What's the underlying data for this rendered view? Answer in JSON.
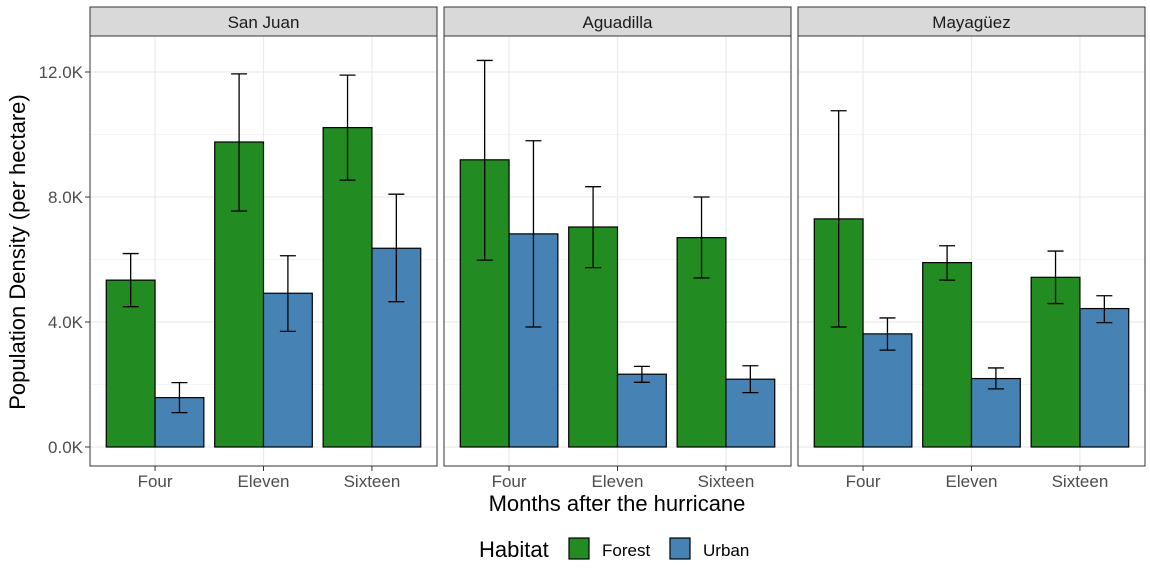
{
  "chart_data": {
    "type": "bar",
    "ylabel": "Population Density (per hectare)",
    "xlabel": "Months after the hurricane",
    "ylim": [
      0,
      13.2
    ],
    "yticks": [
      0,
      4,
      8,
      12
    ],
    "ytick_labels": [
      "0.0K",
      "4.0K",
      "8.0K",
      "12.0K"
    ],
    "grid": true,
    "categories": [
      "Four",
      "Eleven",
      "Sixteen"
    ],
    "legend": {
      "title": "Habitat",
      "position": "bottom",
      "entries": [
        {
          "name": "Forest",
          "color": "#228B22"
        },
        {
          "name": "Urban",
          "color": "#4682B4"
        }
      ]
    },
    "panels": [
      {
        "title": "San Juan",
        "series": [
          {
            "name": "Forest",
            "values": [
              5.34,
              9.76,
              10.22
            ],
            "err_low": [
              4.49,
              7.55,
              8.54
            ],
            "err_high": [
              6.19,
              11.94,
              11.9
            ]
          },
          {
            "name": "Urban",
            "values": [
              1.58,
              4.92,
              6.36
            ],
            "err_low": [
              1.1,
              3.7,
              4.65
            ],
            "err_high": [
              2.06,
              6.12,
              8.09
            ]
          }
        ]
      },
      {
        "title": "Aguadilla",
        "series": [
          {
            "name": "Forest",
            "values": [
              9.19,
              7.04,
              6.7
            ],
            "err_low": [
              5.98,
              5.74,
              5.41
            ],
            "err_high": [
              12.37,
              8.33,
              8.0
            ]
          },
          {
            "name": "Urban",
            "values": [
              6.82,
              2.33,
              2.17
            ],
            "err_low": [
              3.84,
              2.07,
              1.74
            ],
            "err_high": [
              9.8,
              2.58,
              2.6
            ]
          }
        ]
      },
      {
        "title": "Mayagüez",
        "series": [
          {
            "name": "Forest",
            "values": [
              7.3,
              5.9,
              5.43
            ],
            "err_low": [
              3.84,
              5.34,
              4.59
            ],
            "err_high": [
              10.76,
              6.44,
              6.27
            ]
          },
          {
            "name": "Urban",
            "values": [
              3.62,
              2.19,
              4.43
            ],
            "err_low": [
              3.1,
              1.86,
              3.98
            ],
            "err_high": [
              4.13,
              2.53,
              4.84
            ]
          }
        ]
      }
    ]
  }
}
